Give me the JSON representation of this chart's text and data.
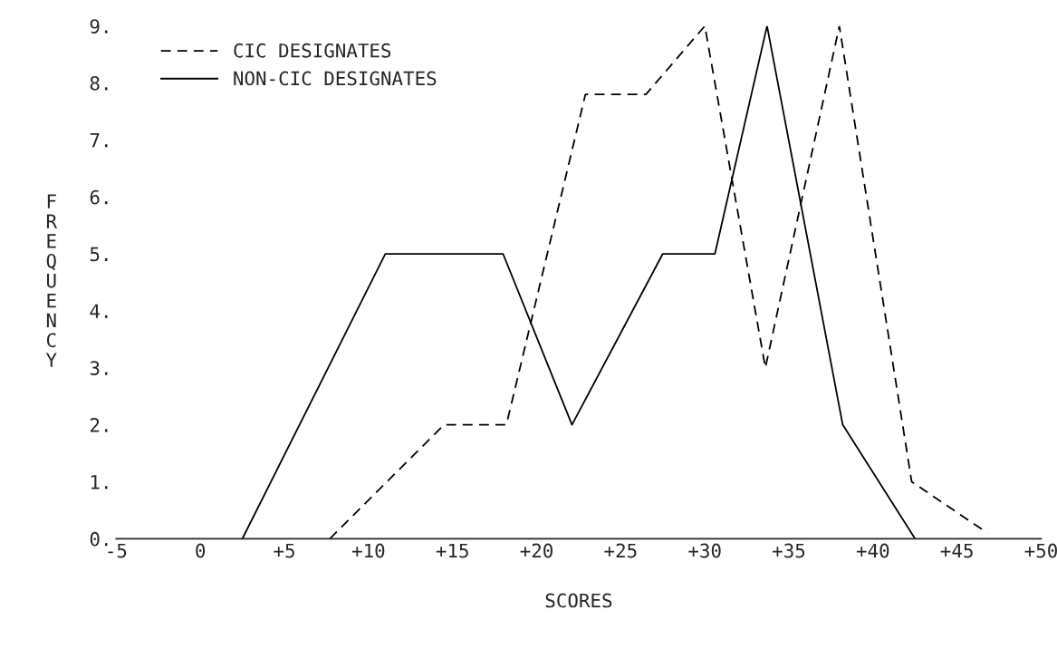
{
  "chart_data": {
    "type": "line",
    "xlabel": "SCORES",
    "ylabel": "FREQUENCY",
    "series": [
      {
        "name": "CIC DESIGNATES",
        "color": "#000000",
        "line_style": "dashed",
        "x": [
          7.7,
          14.5,
          18.2,
          22.9,
          26.5,
          30.0,
          33.6,
          38.0,
          42.3,
          46.8
        ],
        "values": [
          0,
          2,
          2,
          7.8,
          7.8,
          9,
          3,
          9,
          1,
          0.1
        ]
      },
      {
        "name": "NON-CIC DESIGNATES",
        "color": "#000000",
        "line_style": "solid",
        "x": [
          2.5,
          11.0,
          18.0,
          22.1,
          27.5,
          30.6,
          33.7,
          38.2,
          42.5
        ],
        "values": [
          0,
          5,
          5,
          2,
          5,
          5,
          9,
          2,
          0
        ]
      }
    ],
    "xlim": [
      -5,
      50
    ],
    "ylim": [
      0,
      9
    ],
    "xticks": [
      -5,
      {
        "value": 0,
        "label": "0"
      },
      {
        "value": 5,
        "label": "+5"
      },
      {
        "value": 10,
        "label": "+10"
      },
      {
        "value": 15,
        "label": "+15"
      },
      {
        "value": 20,
        "label": "+20"
      },
      {
        "value": 25,
        "label": "+25"
      },
      {
        "value": 30,
        "label": "+30"
      },
      {
        "value": 35,
        "label": "+35"
      },
      {
        "value": 40,
        "label": "+40"
      },
      {
        "value": 45,
        "label": "+45"
      },
      {
        "value": 50,
        "label": "+50"
      }
    ],
    "yticks": [
      {
        "value": 0,
        "label": "0."
      },
      {
        "value": 1,
        "label": "1."
      },
      {
        "value": 2,
        "label": "2."
      },
      {
        "value": 3,
        "label": "3."
      },
      {
        "value": 4,
        "label": "4."
      },
      {
        "value": 5,
        "label": "5."
      },
      {
        "value": 6,
        "label": "6."
      },
      {
        "value": 7,
        "label": "7."
      },
      {
        "value": 8,
        "label": "8."
      },
      {
        "value": 9,
        "label": "9."
      }
    ],
    "grid": false,
    "legend": "top left",
    "marker": "none"
  }
}
